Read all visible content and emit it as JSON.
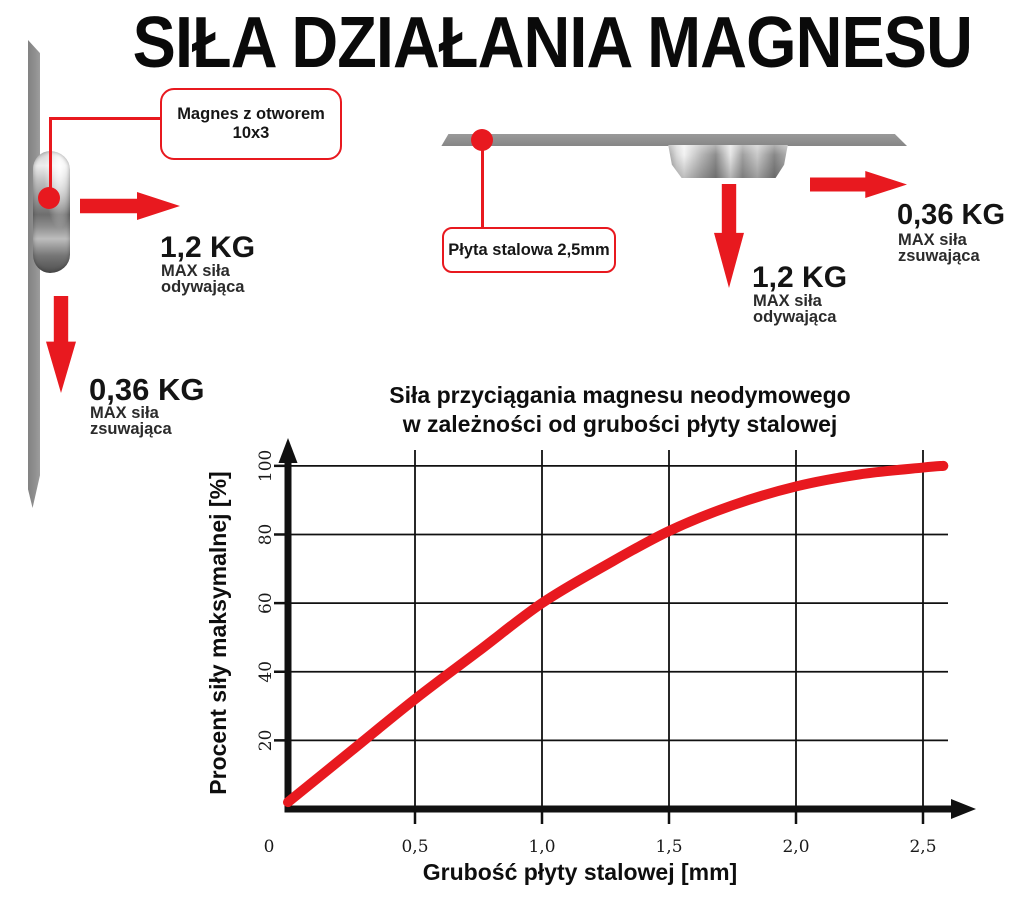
{
  "title": "SIŁA DZIAŁANIA MAGNESU",
  "colors": {
    "red": "#e8191f",
    "plate_gray": "#8f8f8f",
    "ink": "#111111"
  },
  "left_diagram": {
    "callout_label": "Magnes z otworem 10x3",
    "pull_force": {
      "value": "1,2 KG",
      "caption": "MAX siła\nodywająca"
    },
    "slide_force": {
      "value": "0,36 KG",
      "caption": "MAX siła\nzsuwająca"
    }
  },
  "right_diagram": {
    "callout_label": "Płyta stalowa 2,5mm",
    "pull_force": {
      "value": "1,2 KG",
      "caption": "MAX siła\nodywająca"
    },
    "slide_force": {
      "value": "0,36 KG",
      "caption": "MAX siła\nzsuwająca"
    }
  },
  "chart_data": {
    "type": "line",
    "title_line1": "Siła przyciągania magnesu neodymowego",
    "title_line2": "w zależności od grubości płyty stalowej",
    "xlabel": "Grubość płyty stalowej [mm]",
    "ylabel": "Procent siły maksymalnej [%]",
    "series_name": "Procent siły maksymalnej",
    "x": [
      0,
      0.25,
      0.5,
      0.75,
      1.0,
      1.25,
      1.5,
      1.75,
      2.0,
      2.25,
      2.5,
      2.58
    ],
    "y": [
      2,
      17,
      32,
      46,
      60,
      71,
      81,
      88.5,
      94,
      97.5,
      99.5,
      100
    ],
    "xlim": [
      0,
      2.7
    ],
    "ylim": [
      0,
      105
    ],
    "x_ticks": [
      0,
      0.5,
      1.0,
      1.5,
      2.0,
      2.5
    ],
    "x_tick_labels": [
      "0",
      "0,5",
      "1,0",
      "1,5",
      "2,0",
      "2,5"
    ],
    "y_ticks": [
      20,
      40,
      60,
      80,
      100
    ],
    "y_tick_labels": [
      "20",
      "40",
      "60",
      "80",
      "100"
    ],
    "grid": true,
    "legend": "none",
    "series_color": "#e8191f",
    "axis_color": "#111111"
  }
}
